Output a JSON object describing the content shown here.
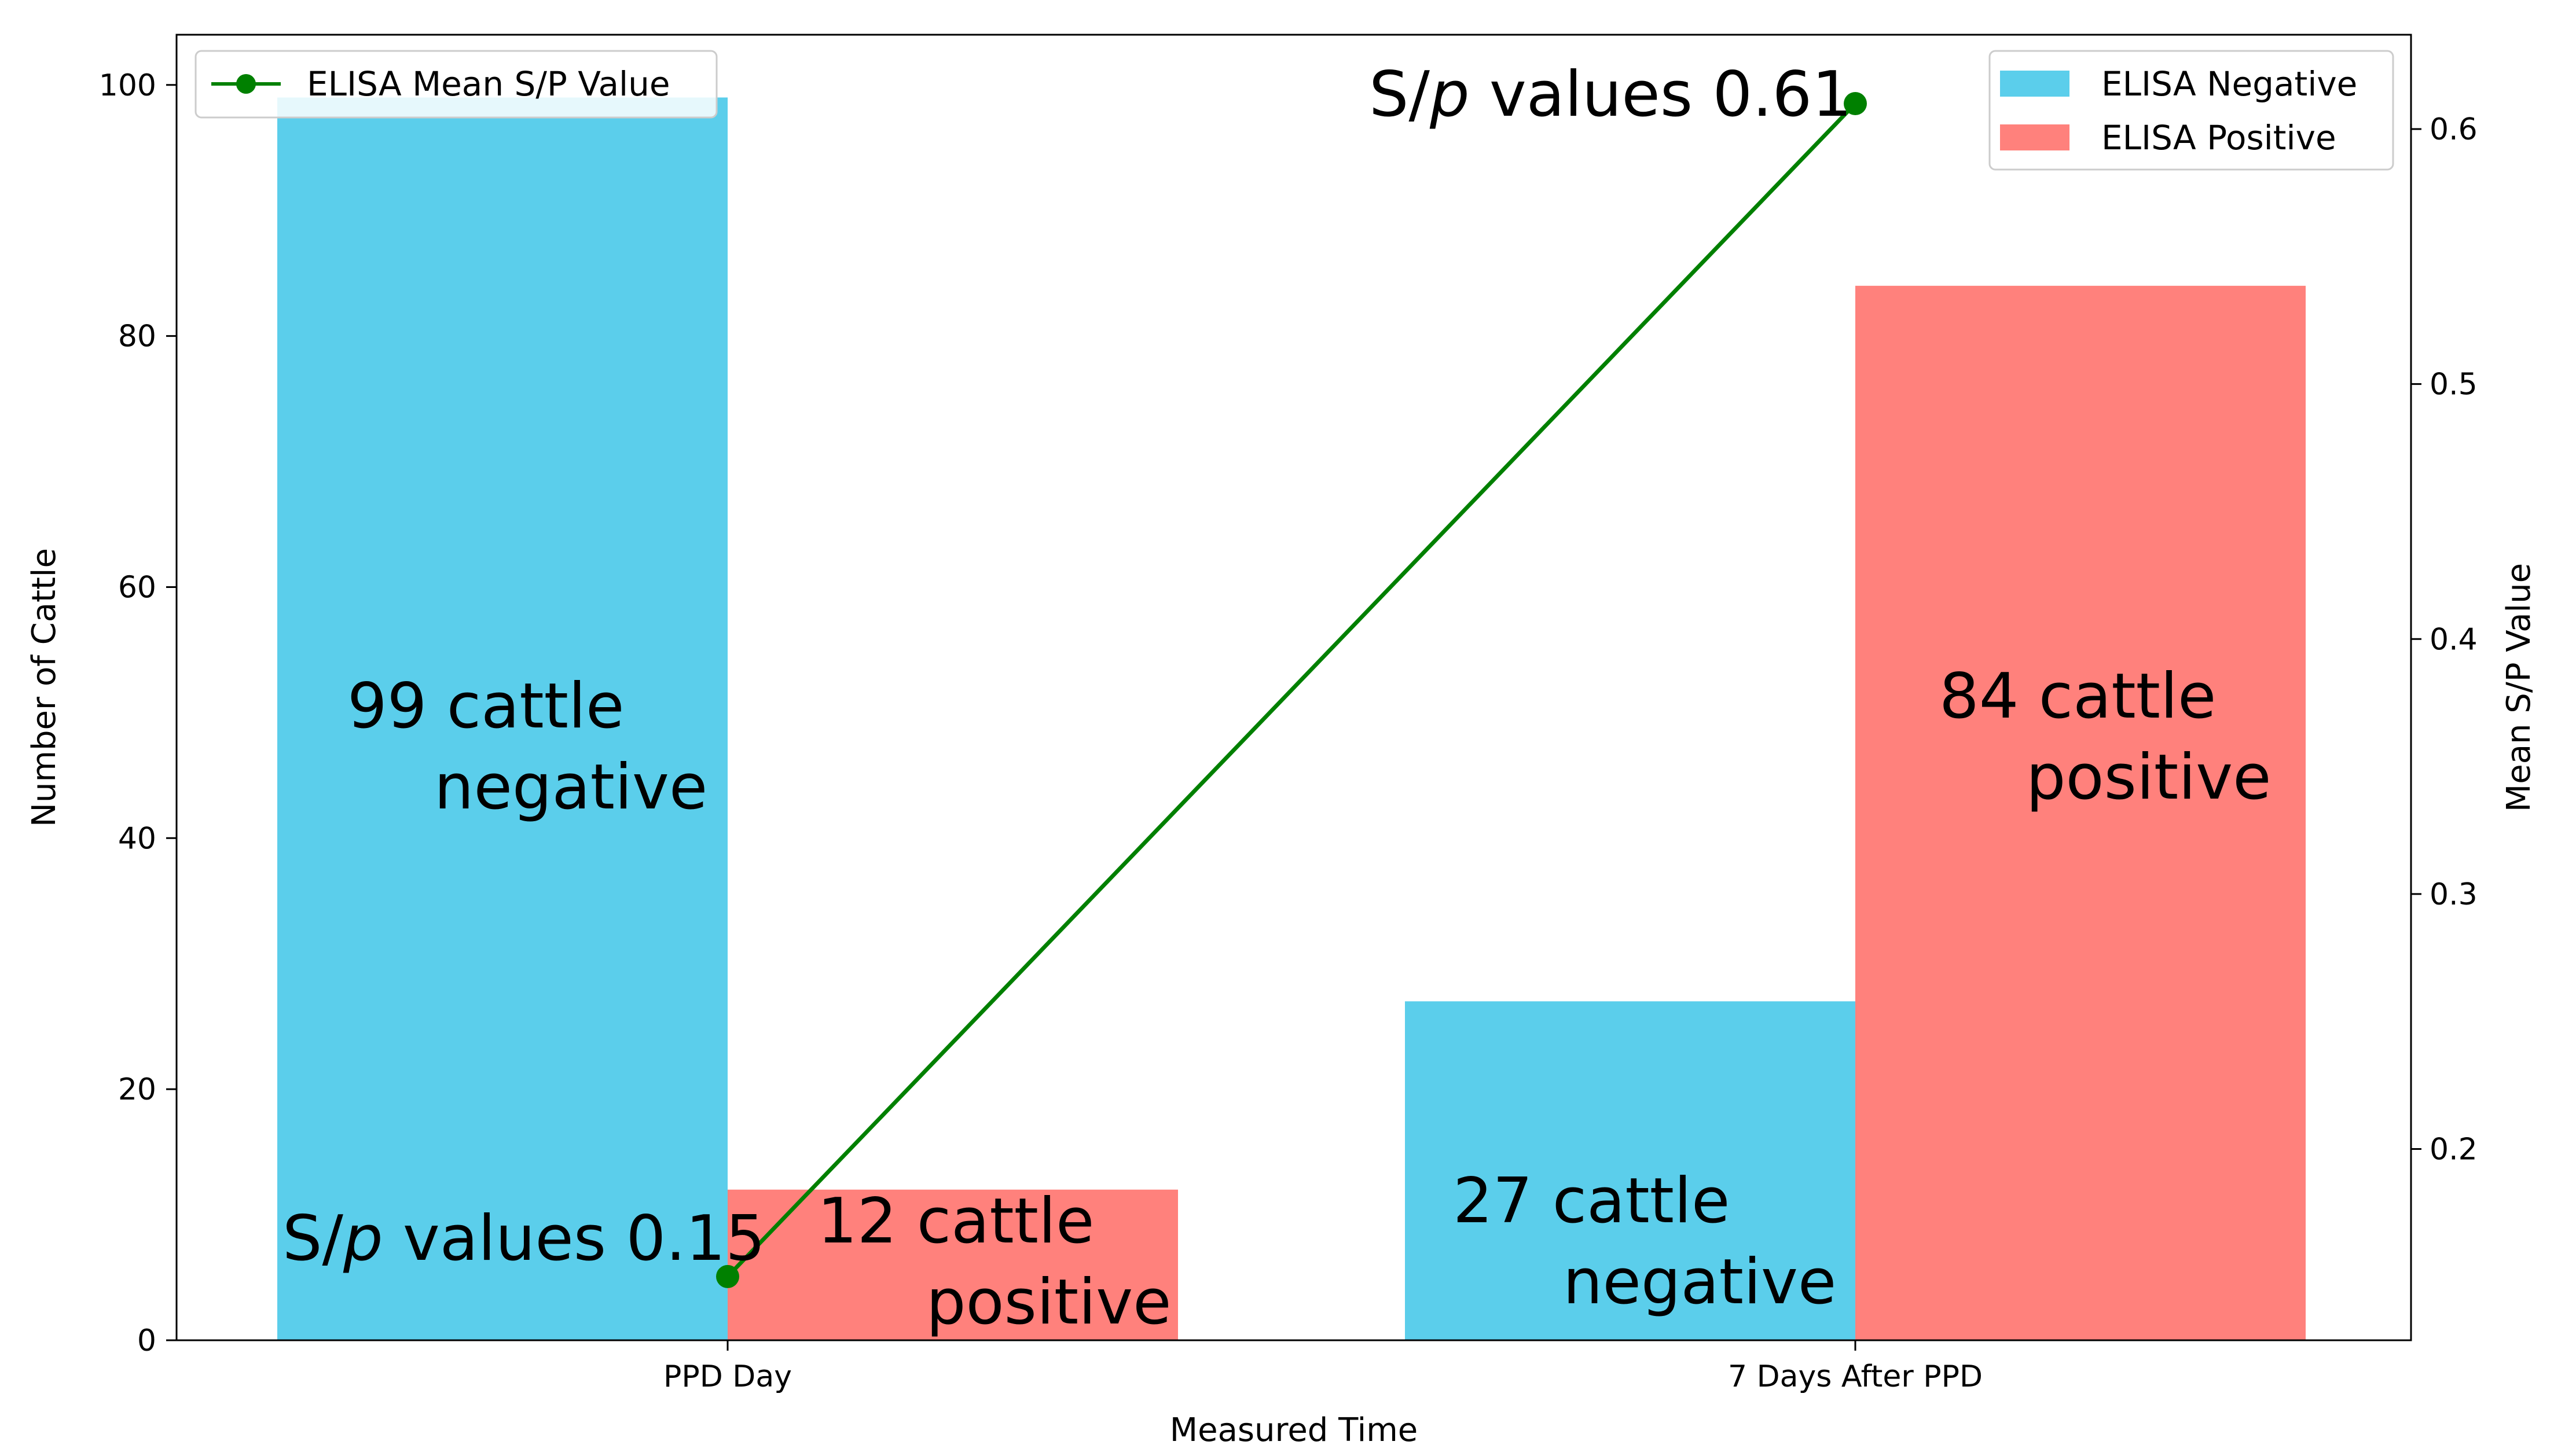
{
  "chart_data": {
    "type": "bar",
    "title": "",
    "xlabel": "Measured Time",
    "ylabel": "Number of Cattle",
    "y2label": "Mean S/P Value",
    "categories": [
      "PPD Day",
      "7 Days After PPD"
    ],
    "ylim": [
      0,
      104
    ],
    "y2lim": [
      0.125,
      0.637
    ],
    "yticks": [
      "0",
      "20",
      "40",
      "60",
      "80",
      "100"
    ],
    "y2ticks": [
      "0.2",
      "0.3",
      "0.4",
      "0.5",
      "0.6"
    ],
    "series": [
      {
        "name": "ELISA Negative",
        "values": [
          99,
          27
        ],
        "color": "#5BCEEB"
      },
      {
        "name": "ELISA Positive",
        "values": [
          12,
          84
        ],
        "color": "#FF817C"
      }
    ],
    "line_series": {
      "name": "ELISA Mean S/P Value",
      "values": [
        0.15,
        0.61
      ],
      "color": "#008000"
    },
    "legend_left": {
      "position": "upper-left",
      "entries": [
        "ELISA Mean S/P Value"
      ]
    },
    "legend_right": {
      "position": "upper-right",
      "entries": [
        "ELISA Negative",
        "ELISA Positive"
      ]
    },
    "annotations": {
      "neg_ppd": {
        "line1": "99 cattle",
        "line2": "negative"
      },
      "pos_ppd": {
        "line1": "12 cattle",
        "line2": "positive"
      },
      "neg_7d": {
        "line1": "27 cattle",
        "line2": "negative"
      },
      "pos_7d": {
        "line1": "84 cattle",
        "line2": "positive"
      },
      "sp_ppd": {
        "s": "S/",
        "p": "p",
        "rest": " values 0.15"
      },
      "sp_7d": {
        "s": "S/",
        "p": "p",
        "rest": " values 0.61"
      }
    }
  }
}
